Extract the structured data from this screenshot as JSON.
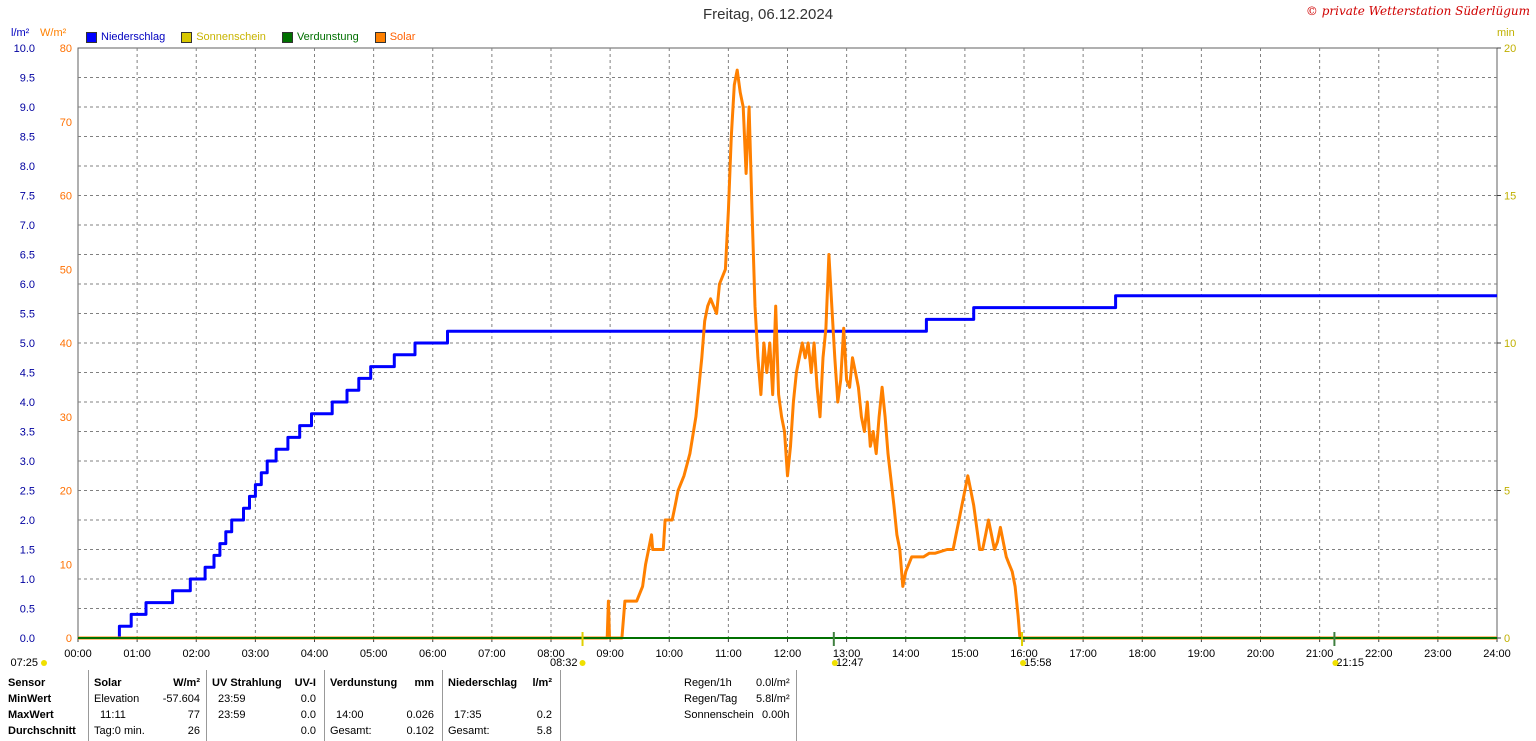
{
  "title": "Freitag, 06.12.2024",
  "copyright": "© private Wetterstation Süderlügum",
  "units": {
    "left_precip": "l/m²",
    "left_solar": "W/m²",
    "right": "min"
  },
  "legend": [
    {
      "label": "Niederschlag",
      "color": "#0000ff"
    },
    {
      "label": "Sonnenschein",
      "color": "#d8c800"
    },
    {
      "label": "Verdunstung",
      "color": "#007000"
    },
    {
      "label": "Solar",
      "color": "#ff8000"
    }
  ],
  "colors": {
    "precip": "#0000ff",
    "solar": "#ff8000",
    "sunshine": "#d8c800",
    "evap": "#007000",
    "grid": "#808080"
  },
  "sun_markers": [
    {
      "label": "07:25",
      "time": 7.4167
    },
    {
      "label": "08:32",
      "time": 8.5333
    },
    {
      "label": "12:47",
      "time": 12.7833
    },
    {
      "label": "15:58",
      "time": 15.9667
    },
    {
      "label": "21:15",
      "time": 21.25
    }
  ],
  "chart_data": {
    "type": "line",
    "title": "Freitag, 06.12.2024",
    "x_range": [
      0,
      24
    ],
    "x_ticks": [
      "00:00",
      "01:00",
      "02:00",
      "03:00",
      "04:00",
      "05:00",
      "06:00",
      "07:00",
      "08:00",
      "09:00",
      "10:00",
      "11:00",
      "12:00",
      "13:00",
      "14:00",
      "15:00",
      "16:00",
      "17:00",
      "18:00",
      "19:00",
      "20:00",
      "21:00",
      "22:00",
      "23:00",
      "24:00"
    ],
    "y_left_precip": {
      "range": [
        0,
        10
      ],
      "ticks": [
        "0.0",
        "0.5",
        "1.0",
        "1.5",
        "2.0",
        "2.5",
        "3.0",
        "3.5",
        "4.0",
        "4.5",
        "5.0",
        "5.5",
        "6.0",
        "6.5",
        "7.0",
        "7.5",
        "8.0",
        "8.5",
        "9.0",
        "9.5",
        "10.0"
      ]
    },
    "y_left_solar": {
      "range": [
        0,
        80
      ],
      "ticks": [
        "0",
        "10",
        "20",
        "30",
        "40",
        "50",
        "60",
        "70",
        "80"
      ]
    },
    "y_right_min": {
      "range": [
        0,
        20
      ],
      "ticks": [
        "0",
        "5",
        "10",
        "15",
        "20"
      ]
    },
    "series": [
      {
        "name": "Niederschlag",
        "axis": "precip",
        "step": true,
        "points": [
          [
            0,
            0
          ],
          [
            0.7,
            0
          ],
          [
            0.7,
            0.2
          ],
          [
            0.9,
            0.2
          ],
          [
            0.9,
            0.4
          ],
          [
            1.15,
            0.4
          ],
          [
            1.15,
            0.6
          ],
          [
            1.6,
            0.6
          ],
          [
            1.6,
            0.8
          ],
          [
            1.9,
            0.8
          ],
          [
            1.9,
            1.0
          ],
          [
            2.15,
            1.0
          ],
          [
            2.15,
            1.2
          ],
          [
            2.3,
            1.2
          ],
          [
            2.3,
            1.4
          ],
          [
            2.4,
            1.4
          ],
          [
            2.4,
            1.6
          ],
          [
            2.5,
            1.6
          ],
          [
            2.5,
            1.8
          ],
          [
            2.6,
            1.8
          ],
          [
            2.6,
            2.0
          ],
          [
            2.8,
            2.0
          ],
          [
            2.8,
            2.2
          ],
          [
            2.9,
            2.2
          ],
          [
            2.9,
            2.4
          ],
          [
            3.0,
            2.4
          ],
          [
            3.0,
            2.6
          ],
          [
            3.1,
            2.6
          ],
          [
            3.1,
            2.8
          ],
          [
            3.2,
            2.8
          ],
          [
            3.2,
            3.0
          ],
          [
            3.35,
            3.0
          ],
          [
            3.35,
            3.2
          ],
          [
            3.55,
            3.2
          ],
          [
            3.55,
            3.4
          ],
          [
            3.75,
            3.4
          ],
          [
            3.75,
            3.6
          ],
          [
            3.95,
            3.6
          ],
          [
            3.95,
            3.8
          ],
          [
            4.3,
            3.8
          ],
          [
            4.3,
            4.0
          ],
          [
            4.55,
            4.0
          ],
          [
            4.55,
            4.2
          ],
          [
            4.75,
            4.2
          ],
          [
            4.75,
            4.4
          ],
          [
            4.95,
            4.4
          ],
          [
            4.95,
            4.6
          ],
          [
            5.35,
            4.6
          ],
          [
            5.35,
            4.8
          ],
          [
            5.7,
            4.8
          ],
          [
            5.7,
            5.0
          ],
          [
            6.25,
            5.0
          ],
          [
            6.25,
            5.2
          ],
          [
            14.35,
            5.2
          ],
          [
            14.35,
            5.4
          ],
          [
            15.15,
            5.4
          ],
          [
            15.15,
            5.6
          ],
          [
            17.55,
            5.6
          ],
          [
            17.55,
            5.8
          ],
          [
            24,
            5.8
          ]
        ]
      },
      {
        "name": "Solar",
        "axis": "solar",
        "points": [
          [
            0,
            0
          ],
          [
            8.95,
            0
          ],
          [
            8.97,
            5
          ],
          [
            8.99,
            0
          ],
          [
            9.2,
            0
          ],
          [
            9.25,
            5
          ],
          [
            9.45,
            5
          ],
          [
            9.55,
            7
          ],
          [
            9.6,
            10
          ],
          [
            9.65,
            12
          ],
          [
            9.7,
            14
          ],
          [
            9.72,
            12
          ],
          [
            9.8,
            12
          ],
          [
            9.9,
            12
          ],
          [
            9.93,
            16
          ],
          [
            10.05,
            16
          ],
          [
            10.1,
            18
          ],
          [
            10.15,
            20
          ],
          [
            10.25,
            22
          ],
          [
            10.35,
            25
          ],
          [
            10.45,
            30
          ],
          [
            10.55,
            38
          ],
          [
            10.6,
            43
          ],
          [
            10.65,
            45
          ],
          [
            10.7,
            46
          ],
          [
            10.8,
            44
          ],
          [
            10.85,
            48
          ],
          [
            10.95,
            50
          ],
          [
            11.0,
            58
          ],
          [
            11.05,
            68
          ],
          [
            11.1,
            75
          ],
          [
            11.15,
            77
          ],
          [
            11.2,
            74
          ],
          [
            11.25,
            72
          ],
          [
            11.3,
            63
          ],
          [
            11.35,
            72
          ],
          [
            11.4,
            58
          ],
          [
            11.45,
            45
          ],
          [
            11.5,
            38
          ],
          [
            11.55,
            33
          ],
          [
            11.6,
            40
          ],
          [
            11.65,
            36
          ],
          [
            11.7,
            40
          ],
          [
            11.75,
            33
          ],
          [
            11.8,
            45
          ],
          [
            11.85,
            33
          ],
          [
            11.9,
            30
          ],
          [
            11.95,
            28
          ],
          [
            12.0,
            22
          ],
          [
            12.05,
            26
          ],
          [
            12.1,
            32
          ],
          [
            12.15,
            36
          ],
          [
            12.2,
            38
          ],
          [
            12.25,
            40
          ],
          [
            12.3,
            38
          ],
          [
            12.35,
            40
          ],
          [
            12.4,
            36
          ],
          [
            12.45,
            40
          ],
          [
            12.5,
            34
          ],
          [
            12.55,
            30
          ],
          [
            12.6,
            38
          ],
          [
            12.65,
            42
          ],
          [
            12.7,
            52
          ],
          [
            12.75,
            45
          ],
          [
            12.8,
            38
          ],
          [
            12.85,
            32
          ],
          [
            12.9,
            35
          ],
          [
            12.95,
            42
          ],
          [
            13.0,
            35
          ],
          [
            13.05,
            34
          ],
          [
            13.1,
            38
          ],
          [
            13.15,
            36
          ],
          [
            13.2,
            34
          ],
          [
            13.25,
            30
          ],
          [
            13.3,
            28
          ],
          [
            13.35,
            32
          ],
          [
            13.4,
            26
          ],
          [
            13.45,
            28
          ],
          [
            13.5,
            25
          ],
          [
            13.55,
            30
          ],
          [
            13.6,
            34
          ],
          [
            13.65,
            30
          ],
          [
            13.7,
            25
          ],
          [
            13.8,
            18
          ],
          [
            13.85,
            14
          ],
          [
            13.9,
            12
          ],
          [
            13.95,
            7
          ],
          [
            14.0,
            9
          ],
          [
            14.1,
            11
          ],
          [
            14.3,
            11
          ],
          [
            14.4,
            11.5
          ],
          [
            14.5,
            11.5
          ],
          [
            14.7,
            12
          ],
          [
            14.8,
            12
          ],
          [
            14.85,
            14
          ],
          [
            14.9,
            16
          ],
          [
            14.95,
            18
          ],
          [
            15.0,
            20
          ],
          [
            15.05,
            22
          ],
          [
            15.1,
            20
          ],
          [
            15.15,
            18
          ],
          [
            15.2,
            15
          ],
          [
            15.25,
            12
          ],
          [
            15.3,
            12
          ],
          [
            15.35,
            14
          ],
          [
            15.4,
            16
          ],
          [
            15.45,
            14
          ],
          [
            15.5,
            12
          ],
          [
            15.55,
            13
          ],
          [
            15.6,
            15
          ],
          [
            15.65,
            13
          ],
          [
            15.7,
            11
          ],
          [
            15.75,
            10
          ],
          [
            15.8,
            9
          ],
          [
            15.85,
            7
          ],
          [
            15.9,
            3
          ],
          [
            15.93,
            0
          ],
          [
            24,
            0
          ]
        ]
      },
      {
        "name": "Verdunstung",
        "axis": "precip",
        "points": [
          [
            0,
            0
          ],
          [
            24,
            0
          ]
        ]
      }
    ]
  },
  "footer": {
    "header": {
      "sensor": "Sensor",
      "solar": "Solar",
      "solar_unit": "W/m²",
      "uv": "UV Strahlung",
      "uv_unit": "UV-I",
      "evap": "Verdunstung",
      "evap_unit": "mm",
      "precip": "Niederschlag",
      "precip_unit": "l/m²"
    },
    "min": {
      "label": "MinWert",
      "solar_time": "Elevation",
      "solar_val": "-57.604",
      "uv_time": "23:59",
      "uv_val": "0.0"
    },
    "max": {
      "label": "MaxWert",
      "solar_time": "11:11",
      "solar_val": "77",
      "uv_time": "23:59",
      "uv_val": "0.0",
      "evap_time": "14:00",
      "evap_val": "0.026",
      "precip_time": "17:35",
      "precip_val": "0.2"
    },
    "avg": {
      "label": "Durchschnitt",
      "solar_time": "Tag:0 min.",
      "solar_val": "26",
      "uv_val": "0.0",
      "evap_label": "Gesamt:",
      "evap_val": "0.102",
      "precip_label": "Gesamt:",
      "precip_val": "5.8"
    },
    "rain": {
      "h1_label": "Regen/1h",
      "h1_val": "0.0l/m²",
      "day_label": "Regen/Tag",
      "day_val": "5.8l/m²",
      "sun_label": "Sonnenschein",
      "sun_val": "0.00h"
    }
  }
}
